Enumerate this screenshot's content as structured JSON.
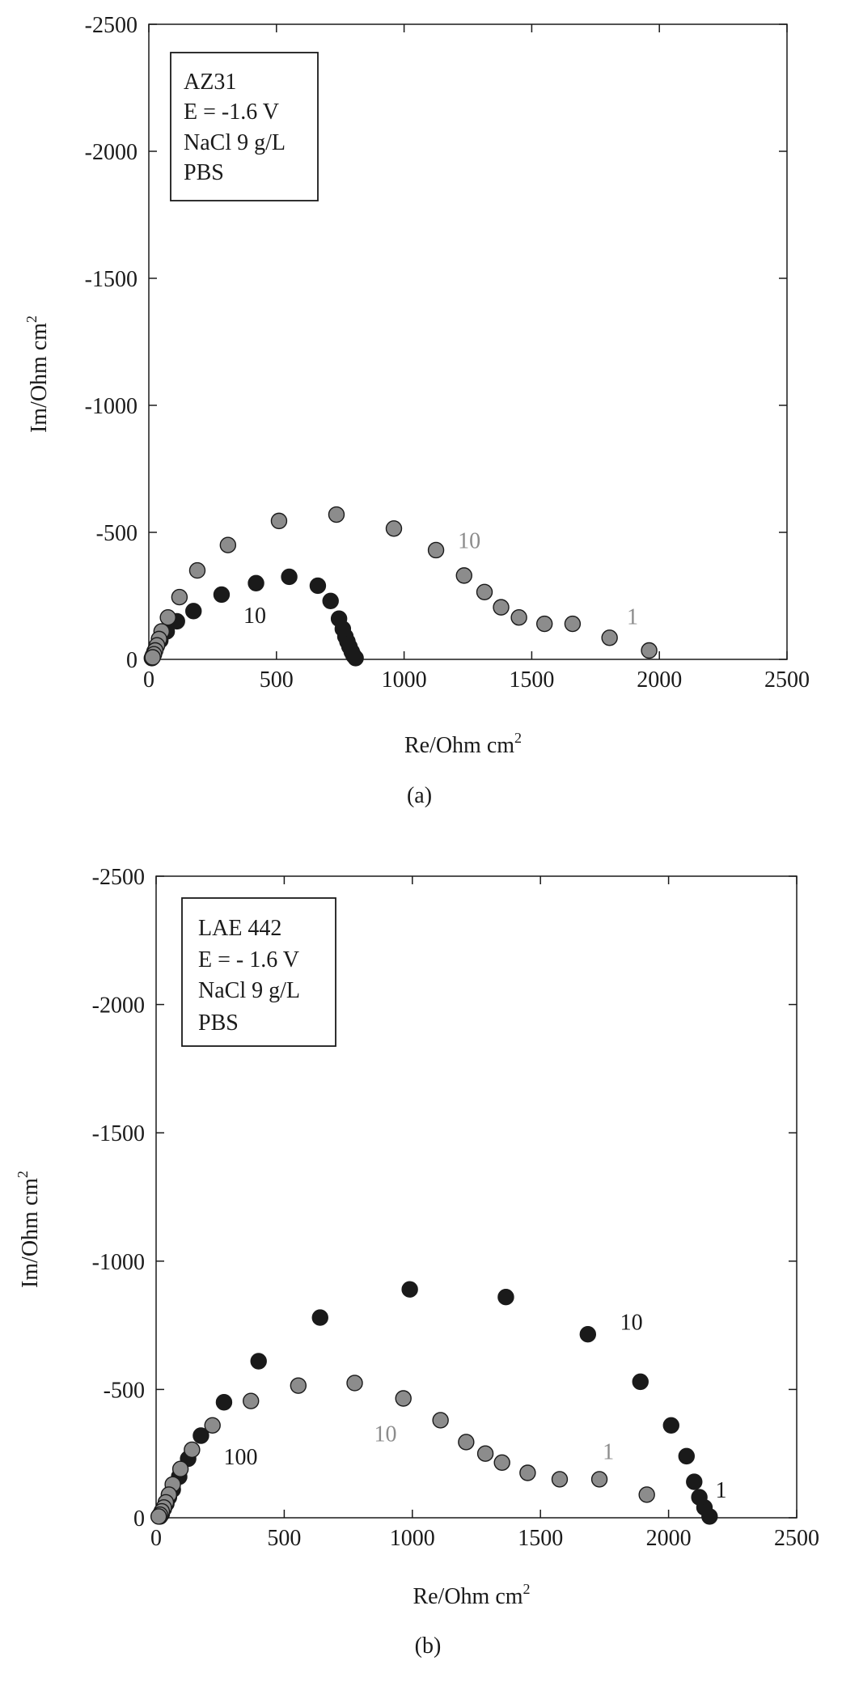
{
  "chart_data": [
    {
      "type": "scatter",
      "caption": "(a)",
      "xlabel": "Re/Ohm cm",
      "ylabel": "Im/Ohm cm",
      "label_superscript": "2",
      "xlim": [
        0,
        2500
      ],
      "ylim": [
        0,
        -2500
      ],
      "xticks": [
        "0",
        "500",
        "1000",
        "1500",
        "2000",
        "2500"
      ],
      "yticks": [
        "0",
        "-500",
        "-1000",
        "-1500",
        "-2000",
        "-2500"
      ],
      "legend": {
        "placement": "top-left",
        "lines": [
          "AZ31",
          "E = -1.6 V",
          "NaCl 9 g/L",
          "PBS"
        ],
        "line_colors": [
          "#1a1a1a",
          "#1a1a1a",
          "#1a1a1a",
          "#8c8c8c"
        ]
      },
      "series": [
        {
          "name": "NaCl 9 g/L",
          "color": "#1a1a1a",
          "x": [
            810,
            802,
            795,
            786,
            778,
            770,
            760,
            745,
            712,
            662,
            550,
            420,
            285,
            175,
            110,
            70,
            45,
            30,
            22,
            16,
            12
          ],
          "y": [
            -5,
            -15,
            -30,
            -50,
            -70,
            -90,
            -120,
            -160,
            -230,
            -290,
            -325,
            -300,
            -255,
            -190,
            -150,
            -110,
            -75,
            -50,
            -30,
            -15,
            -5
          ]
        },
        {
          "name": "PBS",
          "color": "#8c8c8c",
          "x": [
            1960,
            1805,
            1660,
            1550,
            1450,
            1380,
            1315,
            1235,
            1125,
            960,
            735,
            510,
            310,
            190,
            120,
            75,
            50,
            40,
            32,
            25,
            20,
            15
          ],
          "y": [
            -35,
            -85,
            -140,
            -140,
            -165,
            -205,
            -265,
            -330,
            -430,
            -515,
            -570,
            -545,
            -450,
            -350,
            -245,
            -165,
            -110,
            -80,
            -55,
            -35,
            -20,
            -8
          ]
        }
      ],
      "annotations": [
        {
          "text": "10",
          "x": 415,
          "y": -175,
          "color": "#1a1a1a"
        },
        {
          "text": "10",
          "x": 1255,
          "y": -470,
          "color": "#8c8c8c"
        },
        {
          "text": "1",
          "x": 1895,
          "y": -170,
          "color": "#8c8c8c"
        }
      ],
      "grid": false
    },
    {
      "type": "scatter",
      "caption": "(b)",
      "xlabel": "Re/Ohm cm",
      "ylabel": "Im/Ohm cm",
      "label_superscript": "2",
      "xlim": [
        0,
        2500
      ],
      "ylim": [
        0,
        -2500
      ],
      "xticks": [
        "0",
        "500",
        "1000",
        "1500",
        "2000",
        "2500"
      ],
      "yticks": [
        "0",
        "-500",
        "-1000",
        "-1500",
        "-2000",
        "-2500"
      ],
      "legend": {
        "placement": "top-left",
        "lines": [
          "LAE 442",
          "E = - 1.6 V",
          "NaCl 9 g/L",
          "PBS"
        ],
        "line_colors": [
          "#1a1a1a",
          "#1a1a1a",
          "#1a1a1a",
          "#8c8c8c"
        ]
      },
      "series": [
        {
          "name": "NaCl 9 g/L",
          "color": "#1a1a1a",
          "x": [
            2160,
            2140,
            2120,
            2100,
            2070,
            2010,
            1890,
            1685,
            1365,
            990,
            640,
            400,
            265,
            175,
            125,
            90,
            65,
            50,
            40,
            30,
            22,
            15
          ],
          "y": [
            -5,
            -40,
            -80,
            -140,
            -240,
            -360,
            -530,
            -715,
            -860,
            -890,
            -780,
            -610,
            -450,
            -320,
            -230,
            -160,
            -110,
            -80,
            -55,
            -35,
            -15,
            -5
          ]
        },
        {
          "name": "PBS",
          "color": "#8c8c8c",
          "x": [
            1915,
            1730,
            1575,
            1450,
            1350,
            1285,
            1210,
            1110,
            965,
            775,
            555,
            370,
            220,
            140,
            95,
            65,
            50,
            38,
            30,
            22,
            15,
            10
          ],
          "y": [
            -90,
            -150,
            -150,
            -175,
            -215,
            -250,
            -295,
            -380,
            -465,
            -525,
            -515,
            -455,
            -360,
            -265,
            -190,
            -130,
            -90,
            -60,
            -40,
            -25,
            -12,
            -5
          ]
        }
      ],
      "annotations": [
        {
          "text": "100",
          "x": 330,
          "y": -240,
          "color": "#1a1a1a"
        },
        {
          "text": "10",
          "x": 895,
          "y": -330,
          "color": "#8c8c8c"
        },
        {
          "text": "1",
          "x": 1765,
          "y": -260,
          "color": "#8c8c8c"
        },
        {
          "text": "10",
          "x": 1855,
          "y": -765,
          "color": "#1a1a1a"
        },
        {
          "text": "1",
          "x": 2205,
          "y": -110,
          "color": "#1a1a1a"
        }
      ],
      "grid": false
    }
  ]
}
